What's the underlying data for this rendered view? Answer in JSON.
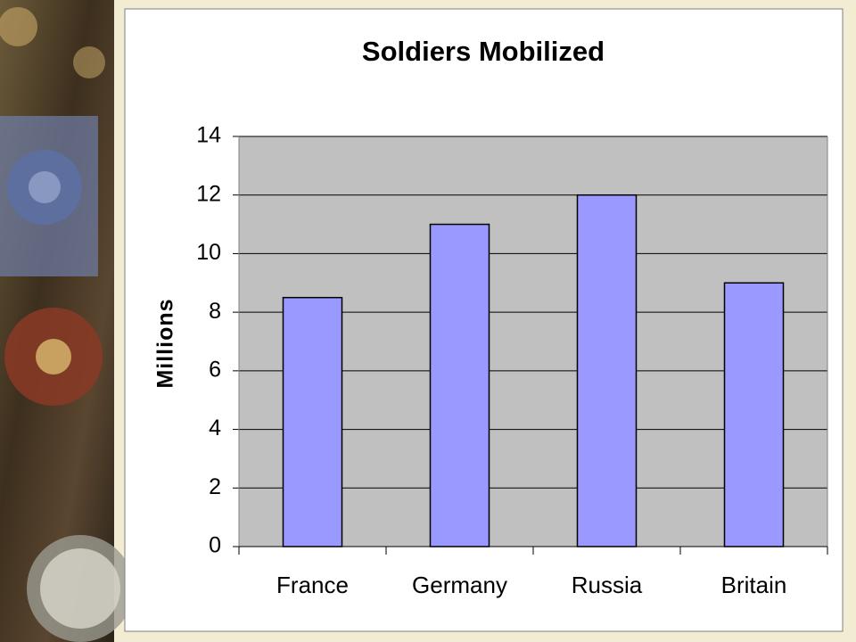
{
  "chart_data": {
    "type": "bar",
    "title": "Soldiers Mobilized",
    "y_label": "Millions",
    "categories": [
      "France",
      "Germany",
      "Russia",
      "Britain"
    ],
    "values": [
      8.5,
      11,
      12,
      9
    ],
    "color": "#9999ff",
    "ylim": [
      0,
      14
    ],
    "yticks": [
      0,
      2,
      4,
      6,
      8,
      10,
      12,
      14
    ],
    "grid": true
  }
}
